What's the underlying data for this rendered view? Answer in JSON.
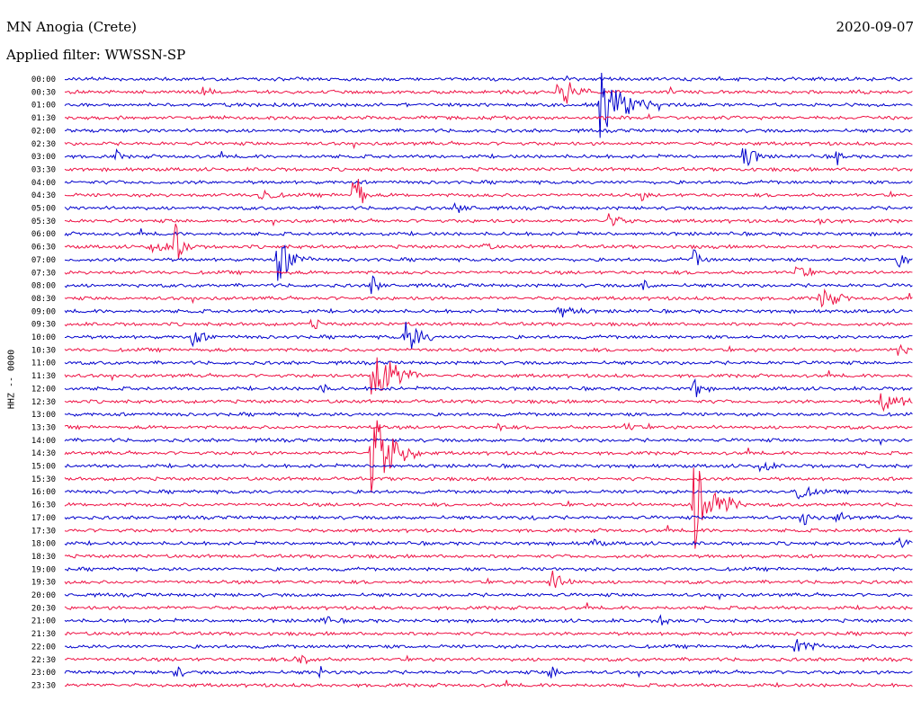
{
  "header": {
    "station": "MN Anogia (Crete)",
    "filter": "Applied filter: WWSSN-SP",
    "date": "2020-09-07",
    "channel": "HHZ -- 0000"
  },
  "colors": {
    "trace_even": "#0000cc",
    "trace_odd": "#ee1144",
    "background": "#ffffff"
  },
  "chart_data": {
    "type": "line",
    "description_kind": "helicorder",
    "rows": [
      {
        "label": "00:00",
        "color": "blue"
      },
      {
        "label": "00:30",
        "color": "red"
      },
      {
        "label": "01:00",
        "color": "blue"
      },
      {
        "label": "01:30",
        "color": "red"
      },
      {
        "label": "02:00",
        "color": "blue"
      },
      {
        "label": "02:30",
        "color": "red"
      },
      {
        "label": "03:00",
        "color": "blue"
      },
      {
        "label": "03:30",
        "color": "red"
      },
      {
        "label": "04:00",
        "color": "blue"
      },
      {
        "label": "04:30",
        "color": "red"
      },
      {
        "label": "05:00",
        "color": "blue"
      },
      {
        "label": "05:30",
        "color": "red"
      },
      {
        "label": "06:00",
        "color": "blue"
      },
      {
        "label": "06:30",
        "color": "red"
      },
      {
        "label": "07:00",
        "color": "blue"
      },
      {
        "label": "07:30",
        "color": "red"
      },
      {
        "label": "08:00",
        "color": "blue"
      },
      {
        "label": "08:30",
        "color": "red"
      },
      {
        "label": "09:00",
        "color": "blue"
      },
      {
        "label": "09:30",
        "color": "red"
      },
      {
        "label": "10:00",
        "color": "blue"
      },
      {
        "label": "10:30",
        "color": "red"
      },
      {
        "label": "11:00",
        "color": "blue"
      },
      {
        "label": "11:30",
        "color": "red"
      },
      {
        "label": "12:00",
        "color": "blue"
      },
      {
        "label": "12:30",
        "color": "red"
      },
      {
        "label": "13:00",
        "color": "blue"
      },
      {
        "label": "13:30",
        "color": "red"
      },
      {
        "label": "14:00",
        "color": "blue"
      },
      {
        "label": "14:30",
        "color": "red"
      },
      {
        "label": "15:00",
        "color": "blue"
      },
      {
        "label": "15:30",
        "color": "red"
      },
      {
        "label": "16:00",
        "color": "blue"
      },
      {
        "label": "16:30",
        "color": "red"
      },
      {
        "label": "17:00",
        "color": "blue"
      },
      {
        "label": "17:30",
        "color": "red"
      },
      {
        "label": "18:00",
        "color": "blue"
      },
      {
        "label": "18:30",
        "color": "red"
      },
      {
        "label": "19:00",
        "color": "blue"
      },
      {
        "label": "19:30",
        "color": "red"
      },
      {
        "label": "20:00",
        "color": "blue"
      },
      {
        "label": "20:30",
        "color": "red"
      },
      {
        "label": "21:00",
        "color": "blue"
      },
      {
        "label": "21:30",
        "color": "red"
      },
      {
        "label": "22:00",
        "color": "blue"
      },
      {
        "label": "22:30",
        "color": "red"
      },
      {
        "label": "23:00",
        "color": "blue"
      },
      {
        "label": "23:30",
        "color": "red"
      }
    ],
    "events": [
      {
        "row": 1,
        "t": 0.16,
        "amp": 0.8,
        "dur": 0.02
      },
      {
        "row": 1,
        "t": 0.58,
        "amp": 2.6,
        "dur": 0.04
      },
      {
        "row": 2,
        "t": 0.63,
        "amp": 3.8,
        "dur": 0.06
      },
      {
        "row": 6,
        "t": 0.06,
        "amp": 0.8,
        "dur": 0.01
      },
      {
        "row": 6,
        "t": 0.8,
        "amp": 1.4,
        "dur": 0.03
      },
      {
        "row": 6,
        "t": 0.91,
        "amp": 1.0,
        "dur": 0.01
      },
      {
        "row": 9,
        "t": 0.23,
        "amp": 0.8,
        "dur": 0.03
      },
      {
        "row": 9,
        "t": 0.34,
        "amp": 3.6,
        "dur": 0.02
      },
      {
        "row": 9,
        "t": 0.68,
        "amp": 0.8,
        "dur": 0.01
      },
      {
        "row": 10,
        "t": 0.46,
        "amp": 0.6,
        "dur": 0.03
      },
      {
        "row": 11,
        "t": 0.64,
        "amp": 0.8,
        "dur": 0.03
      },
      {
        "row": 11,
        "t": 0.89,
        "amp": 0.6,
        "dur": 0.02
      },
      {
        "row": 13,
        "t": 0.1,
        "amp": 0.6,
        "dur": 0.05
      },
      {
        "row": 13,
        "t": 0.13,
        "amp": 2.4,
        "dur": 0.02
      },
      {
        "row": 13,
        "t": 0.49,
        "amp": 0.6,
        "dur": 0.02
      },
      {
        "row": 14,
        "t": 0.25,
        "amp": 2.6,
        "dur": 0.04
      },
      {
        "row": 14,
        "t": 0.74,
        "amp": 1.2,
        "dur": 0.02
      },
      {
        "row": 14,
        "t": 0.98,
        "amp": 1.0,
        "dur": 0.02
      },
      {
        "row": 15,
        "t": 0.86,
        "amp": 0.8,
        "dur": 0.03
      },
      {
        "row": 16,
        "t": 0.36,
        "amp": 1.2,
        "dur": 0.02
      },
      {
        "row": 16,
        "t": 0.68,
        "amp": 1.8,
        "dur": 0.01
      },
      {
        "row": 17,
        "t": 0.89,
        "amp": 1.4,
        "dur": 0.04
      },
      {
        "row": 18,
        "t": 0.58,
        "amp": 0.9,
        "dur": 0.04
      },
      {
        "row": 19,
        "t": 0.29,
        "amp": 0.8,
        "dur": 0.02
      },
      {
        "row": 20,
        "t": 0.4,
        "amp": 2.2,
        "dur": 0.04
      },
      {
        "row": 20,
        "t": 0.15,
        "amp": 0.9,
        "dur": 0.03
      },
      {
        "row": 21,
        "t": 0.98,
        "amp": 1.0,
        "dur": 0.02
      },
      {
        "row": 23,
        "t": 0.36,
        "amp": 4.0,
        "dur": 0.06
      },
      {
        "row": 24,
        "t": 0.74,
        "amp": 1.8,
        "dur": 0.02
      },
      {
        "row": 24,
        "t": 0.3,
        "amp": 0.6,
        "dur": 0.02
      },
      {
        "row": 25,
        "t": 0.96,
        "amp": 1.0,
        "dur": 0.06
      },
      {
        "row": 27,
        "t": 0.66,
        "amp": 0.8,
        "dur": 0.02
      },
      {
        "row": 27,
        "t": 0.51,
        "amp": 0.6,
        "dur": 0.01
      },
      {
        "row": 29,
        "t": 0.36,
        "amp": 5.0,
        "dur": 0.06
      },
      {
        "row": 30,
        "t": 0.82,
        "amp": 1.0,
        "dur": 0.02
      },
      {
        "row": 32,
        "t": 0.86,
        "amp": 0.9,
        "dur": 0.04
      },
      {
        "row": 33,
        "t": 0.74,
        "amp": 5.0,
        "dur": 0.06
      },
      {
        "row": 34,
        "t": 0.87,
        "amp": 1.0,
        "dur": 0.02
      },
      {
        "row": 34,
        "t": 0.91,
        "amp": 0.8,
        "dur": 0.02
      },
      {
        "row": 34,
        "t": 0.55,
        "amp": 0.5,
        "dur": 0.01
      },
      {
        "row": 36,
        "t": 0.62,
        "amp": 0.6,
        "dur": 0.02
      },
      {
        "row": 36,
        "t": 0.98,
        "amp": 0.6,
        "dur": 0.03
      },
      {
        "row": 39,
        "t": 0.57,
        "amp": 1.4,
        "dur": 0.04
      },
      {
        "row": 42,
        "t": 0.3,
        "amp": 0.6,
        "dur": 0.03
      },
      {
        "row": 42,
        "t": 0.7,
        "amp": 0.5,
        "dur": 0.03
      },
      {
        "row": 44,
        "t": 0.86,
        "amp": 1.0,
        "dur": 0.04
      },
      {
        "row": 45,
        "t": 0.27,
        "amp": 1.2,
        "dur": 0.03
      },
      {
        "row": 46,
        "t": 0.13,
        "amp": 0.7,
        "dur": 0.02
      },
      {
        "row": 46,
        "t": 0.3,
        "amp": 0.8,
        "dur": 0.01
      },
      {
        "row": 46,
        "t": 0.57,
        "amp": 0.9,
        "dur": 0.02
      }
    ]
  }
}
